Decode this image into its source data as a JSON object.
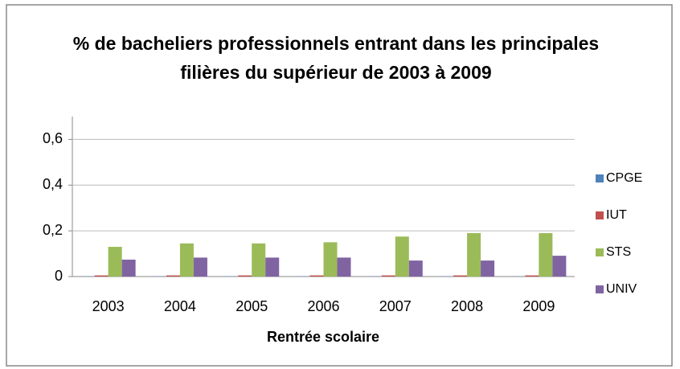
{
  "chart_data": {
    "type": "bar",
    "title": "% de bacheliers professionnels entrant dans les principales filières du supérieur de 2003 à 2009",
    "x_label": "Rentrée scolaire",
    "categories": [
      "2003",
      "2004",
      "2005",
      "2006",
      "2007",
      "2008",
      "2009"
    ],
    "series": [
      {
        "name": "CPGE",
        "color": "#4f81bd",
        "values": [
          0.001,
          0.001,
          0.001,
          0.001,
          0.001,
          0.001,
          0.001
        ]
      },
      {
        "name": "IUT",
        "color": "#c0504d",
        "values": [
          0.005,
          0.005,
          0.005,
          0.005,
          0.005,
          0.005,
          0.005
        ]
      },
      {
        "name": "STS",
        "color": "#9bbb59",
        "values": [
          0.13,
          0.145,
          0.145,
          0.15,
          0.175,
          0.19,
          0.19
        ]
      },
      {
        "name": "UNIV",
        "color": "#8064a2",
        "values": [
          0.074,
          0.083,
          0.083,
          0.083,
          0.07,
          0.07,
          0.091
        ]
      }
    ],
    "ylim": [
      0,
      0.7
    ],
    "yticks": [
      0,
      {
        "value": 0.2,
        "label": "0,2"
      },
      {
        "value": 0.4,
        "label": "0,4"
      },
      {
        "value": 0.6,
        "label": "0,6"
      }
    ],
    "grid": true,
    "legend": "right"
  }
}
